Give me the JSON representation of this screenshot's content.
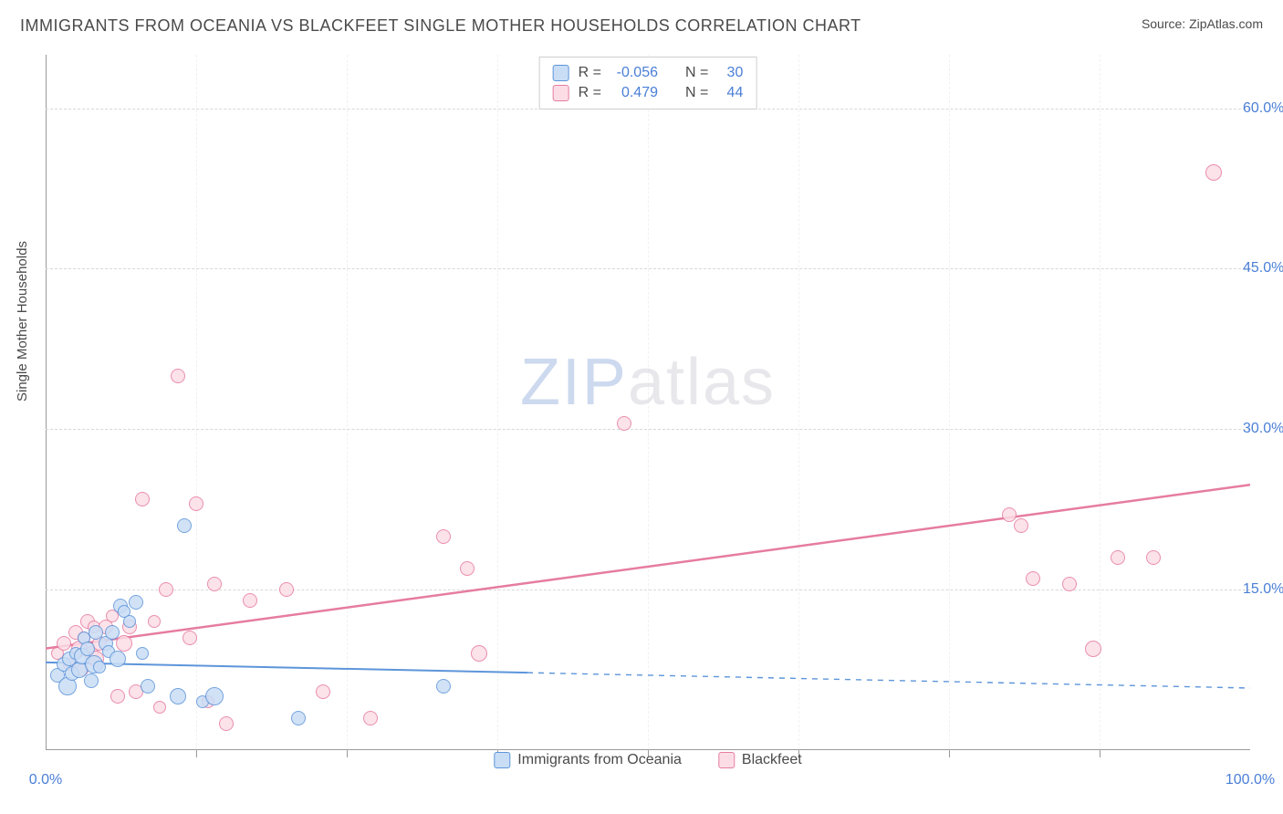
{
  "title": "IMMIGRANTS FROM OCEANIA VS BLACKFEET SINGLE MOTHER HOUSEHOLDS CORRELATION CHART",
  "source_label": "Source: ",
  "source_name": "ZipAtlas.com",
  "y_axis_label": "Single Mother Households",
  "watermark_zip": "ZIP",
  "watermark_atlas": "atlas",
  "chart": {
    "type": "scatter",
    "xlim": [
      0,
      100
    ],
    "ylim": [
      0,
      65
    ],
    "x_ticks": [
      0,
      100
    ],
    "x_tick_labels": [
      "0.0%",
      "100.0%"
    ],
    "x_minor_ticks": [
      12.5,
      25,
      37.5,
      50,
      62.5,
      75,
      87.5
    ],
    "y_ticks": [
      15,
      30,
      45,
      60
    ],
    "y_tick_labels": [
      "15.0%",
      "30.0%",
      "45.0%",
      "60.0%"
    ],
    "grid_color": "#d8d8d8",
    "axis_color": "#9a9a9a",
    "background_color": "#ffffff",
    "series": [
      {
        "name": "Immigrants from Oceania",
        "fill": "#c9ddf5",
        "stroke": "#5d95da",
        "r_label": "R =",
        "r_value": "-0.056",
        "n_label": "N =",
        "n_value": "30",
        "marker_radius_range": [
          6,
          11
        ],
        "trend": {
          "x1": 0,
          "y1": 8.2,
          "x2": 100,
          "y2": 5.8,
          "solid_until_x": 40,
          "width": 2
        },
        "points": [
          {
            "x": 1,
            "y": 7,
            "r": 8
          },
          {
            "x": 1.5,
            "y": 8,
            "r": 8
          },
          {
            "x": 1.8,
            "y": 6,
            "r": 10
          },
          {
            "x": 2,
            "y": 8.5,
            "r": 8
          },
          {
            "x": 2.2,
            "y": 7.2,
            "r": 8
          },
          {
            "x": 2.5,
            "y": 9,
            "r": 7
          },
          {
            "x": 2.8,
            "y": 7.5,
            "r": 9
          },
          {
            "x": 3,
            "y": 8.8,
            "r": 9
          },
          {
            "x": 3.2,
            "y": 10.5,
            "r": 7
          },
          {
            "x": 3.5,
            "y": 9.5,
            "r": 8
          },
          {
            "x": 3.8,
            "y": 6.5,
            "r": 8
          },
          {
            "x": 4,
            "y": 8,
            "r": 10
          },
          {
            "x": 4.2,
            "y": 11,
            "r": 8
          },
          {
            "x": 4.5,
            "y": 7.8,
            "r": 7
          },
          {
            "x": 5,
            "y": 10,
            "r": 8
          },
          {
            "x": 5.2,
            "y": 9.2,
            "r": 7
          },
          {
            "x": 5.5,
            "y": 11,
            "r": 8
          },
          {
            "x": 6,
            "y": 8.5,
            "r": 9
          },
          {
            "x": 6.2,
            "y": 13.5,
            "r": 8
          },
          {
            "x": 6.5,
            "y": 13,
            "r": 7
          },
          {
            "x": 7,
            "y": 12,
            "r": 7
          },
          {
            "x": 7.5,
            "y": 13.8,
            "r": 8
          },
          {
            "x": 8,
            "y": 9,
            "r": 7
          },
          {
            "x": 8.5,
            "y": 6,
            "r": 8
          },
          {
            "x": 11,
            "y": 5,
            "r": 9
          },
          {
            "x": 11.5,
            "y": 21,
            "r": 8
          },
          {
            "x": 13,
            "y": 4.5,
            "r": 7
          },
          {
            "x": 14,
            "y": 5,
            "r": 10
          },
          {
            "x": 21,
            "y": 3,
            "r": 8
          },
          {
            "x": 33,
            "y": 6,
            "r": 8
          }
        ]
      },
      {
        "name": "Blackfeet",
        "fill": "#fcdde6",
        "stroke": "#e67ca0",
        "r_label": "R =",
        "r_value": "0.479",
        "n_label": "N =",
        "n_value": "44",
        "marker_radius_range": [
          6,
          11
        ],
        "trend": {
          "x1": 0,
          "y1": 9.5,
          "x2": 100,
          "y2": 24.8,
          "solid_until_x": 100,
          "width": 2.5
        },
        "points": [
          {
            "x": 1,
            "y": 9,
            "r": 7
          },
          {
            "x": 1.5,
            "y": 10,
            "r": 8
          },
          {
            "x": 2,
            "y": 8,
            "r": 7
          },
          {
            "x": 2.5,
            "y": 11,
            "r": 8
          },
          {
            "x": 2.8,
            "y": 9.5,
            "r": 9
          },
          {
            "x": 3,
            "y": 7.5,
            "r": 7
          },
          {
            "x": 3.2,
            "y": 10.5,
            "r": 7
          },
          {
            "x": 3.5,
            "y": 12,
            "r": 8
          },
          {
            "x": 3.8,
            "y": 9,
            "r": 8
          },
          {
            "x": 4,
            "y": 11.5,
            "r": 7
          },
          {
            "x": 4.2,
            "y": 8.5,
            "r": 9
          },
          {
            "x": 4.5,
            "y": 10,
            "r": 8
          },
          {
            "x": 5,
            "y": 11.5,
            "r": 8
          },
          {
            "x": 5.5,
            "y": 12.5,
            "r": 7
          },
          {
            "x": 6,
            "y": 5,
            "r": 8
          },
          {
            "x": 6.5,
            "y": 10,
            "r": 9
          },
          {
            "x": 7,
            "y": 11.5,
            "r": 8
          },
          {
            "x": 7.5,
            "y": 5.5,
            "r": 8
          },
          {
            "x": 8,
            "y": 23.5,
            "r": 8
          },
          {
            "x": 9,
            "y": 12,
            "r": 7
          },
          {
            "x": 9.5,
            "y": 4,
            "r": 7
          },
          {
            "x": 10,
            "y": 15,
            "r": 8
          },
          {
            "x": 11,
            "y": 35,
            "r": 8
          },
          {
            "x": 12,
            "y": 10.5,
            "r": 8
          },
          {
            "x": 12.5,
            "y": 23,
            "r": 8
          },
          {
            "x": 13.5,
            "y": 4.5,
            "r": 7
          },
          {
            "x": 14,
            "y": 15.5,
            "r": 8
          },
          {
            "x": 15,
            "y": 2.5,
            "r": 8
          },
          {
            "x": 17,
            "y": 14,
            "r": 8
          },
          {
            "x": 20,
            "y": 15,
            "r": 8
          },
          {
            "x": 23,
            "y": 5.5,
            "r": 8
          },
          {
            "x": 27,
            "y": 3,
            "r": 8
          },
          {
            "x": 33,
            "y": 20,
            "r": 8
          },
          {
            "x": 35,
            "y": 17,
            "r": 8
          },
          {
            "x": 36,
            "y": 9,
            "r": 9
          },
          {
            "x": 48,
            "y": 30.5,
            "r": 8
          },
          {
            "x": 80,
            "y": 22,
            "r": 8
          },
          {
            "x": 81,
            "y": 21,
            "r": 8
          },
          {
            "x": 82,
            "y": 16,
            "r": 8
          },
          {
            "x": 85,
            "y": 15.5,
            "r": 8
          },
          {
            "x": 87,
            "y": 9.5,
            "r": 9
          },
          {
            "x": 89,
            "y": 18,
            "r": 8
          },
          {
            "x": 92,
            "y": 18,
            "r": 8
          },
          {
            "x": 97,
            "y": 54,
            "r": 9
          }
        ]
      }
    ]
  }
}
